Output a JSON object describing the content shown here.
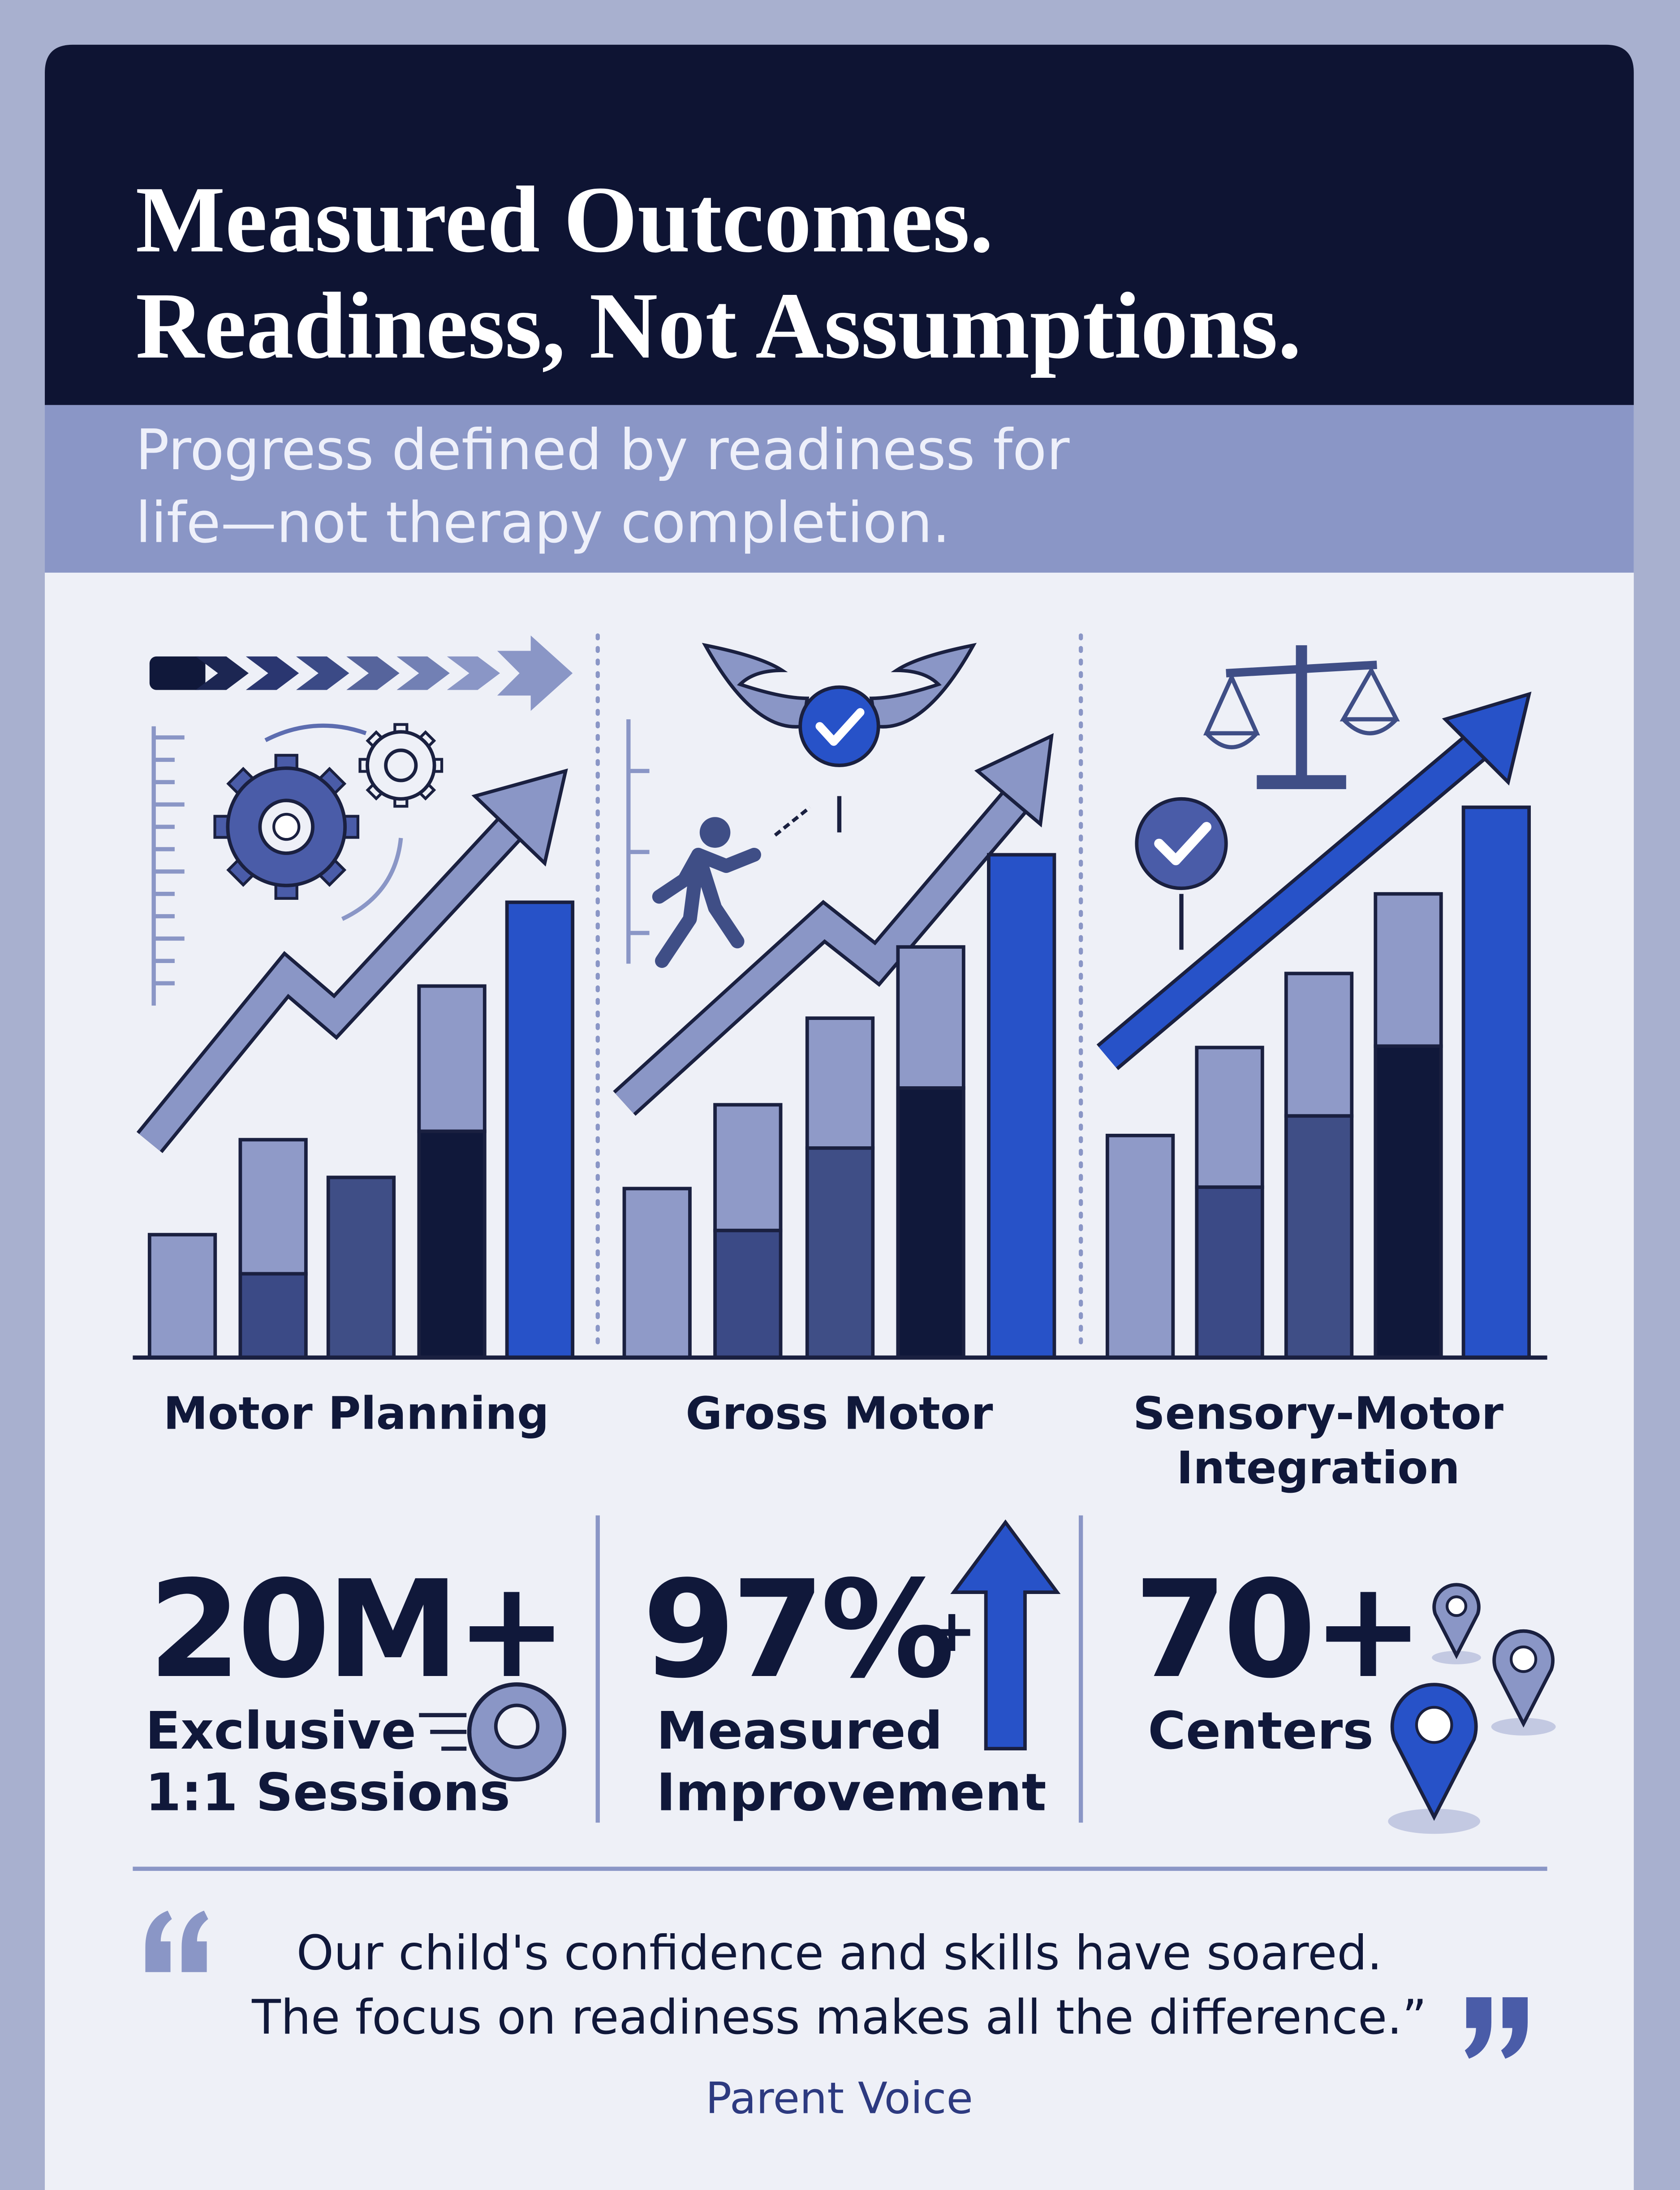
{
  "header": {
    "title": [
      "Measured Outcomes.",
      "Readiness, Not Assumptions."
    ],
    "subtitle": [
      "Progress defined by readiness for",
      "life—not therapy completion."
    ]
  },
  "panels": [
    {
      "label": [
        "Motor Planning"
      ]
    },
    {
      "label": [
        "Gross Motor"
      ]
    },
    {
      "label": [
        "Sensory-Motor",
        "Integration"
      ]
    }
  ],
  "stats": [
    {
      "value": "20M+",
      "label": [
        "Exclusive",
        "1:1 Sessions"
      ]
    },
    {
      "value": "97%",
      "suffix": "+",
      "label": [
        "Measured",
        "Improvement"
      ]
    },
    {
      "value": "70+",
      "label": [
        "Centers"
      ]
    }
  ],
  "quote": {
    "lines": [
      "Our child's confidence and skills have soared.",
      "The focus on readiness makes all the difference.”"
    ],
    "attribution": "Parent Voice"
  }
}
